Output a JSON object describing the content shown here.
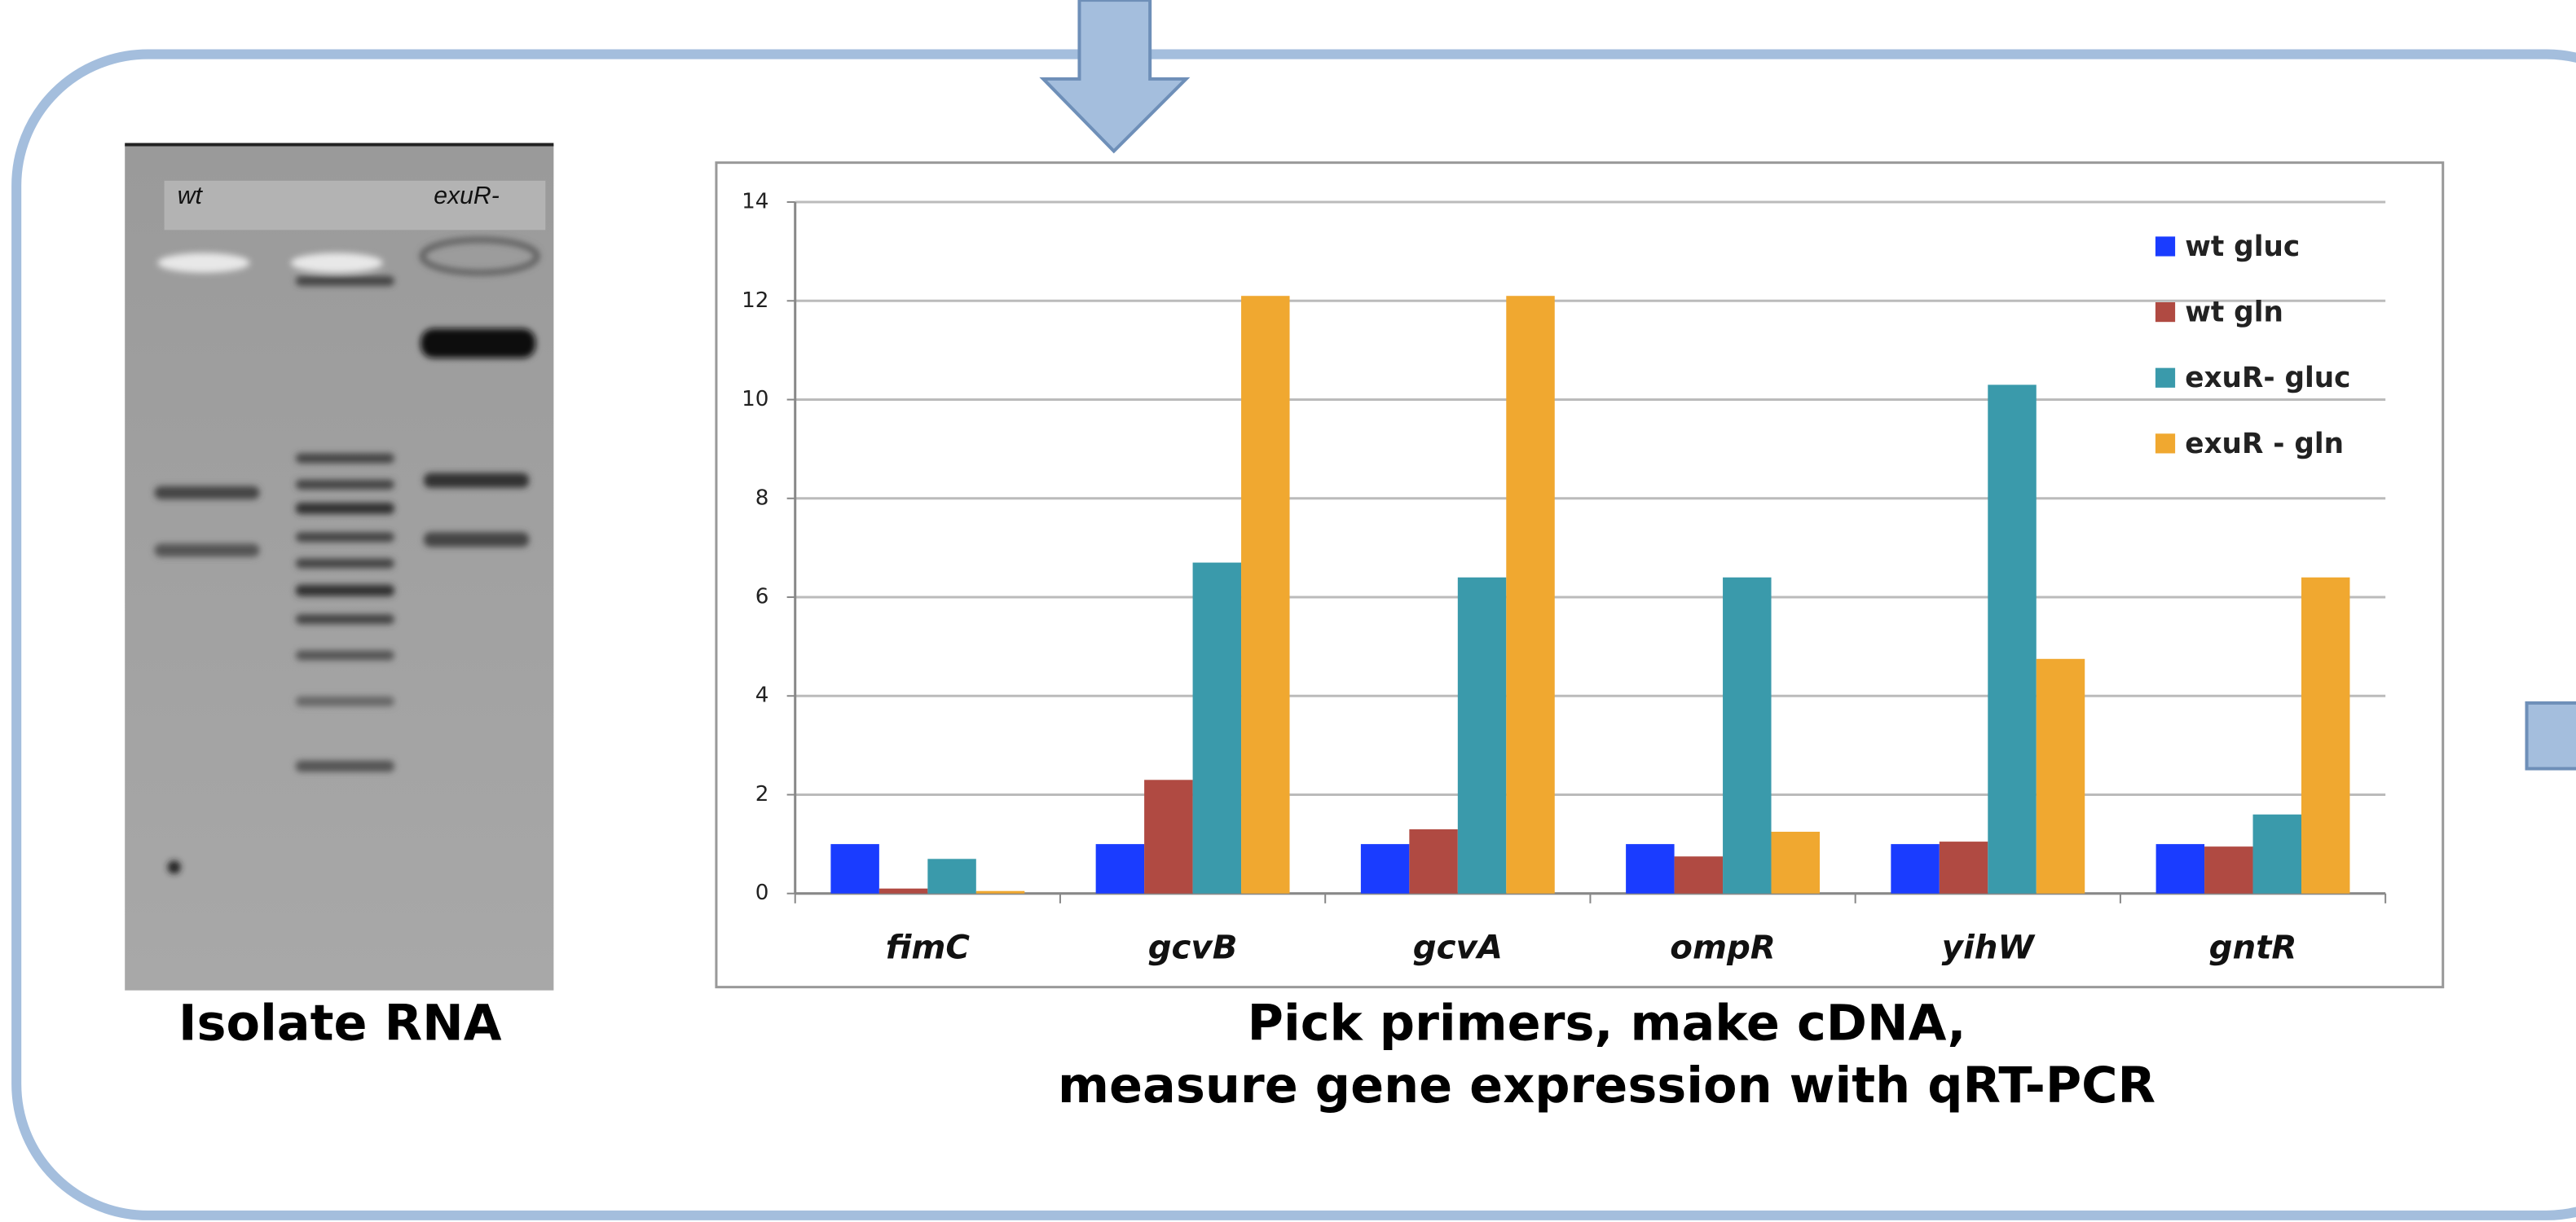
{
  "gel": {
    "lane_labels": [
      "wt",
      "exuR-"
    ],
    "caption": "Isolate RNA"
  },
  "chart_data": {
    "type": "bar",
    "categories": [
      "fimC",
      "gcvB",
      "gcvA",
      "ompR",
      "yihW",
      "gntR"
    ],
    "series": [
      {
        "name": "wt gluc",
        "color": "#1a3cff",
        "values": [
          1,
          1,
          1,
          1,
          1,
          1
        ]
      },
      {
        "name": "wt gln",
        "color": "#b04a42",
        "values": [
          0.1,
          2.3,
          1.3,
          0.75,
          1.05,
          0.95
        ]
      },
      {
        "name": "exuR- gluc",
        "color": "#3a9aab",
        "values": [
          0.7,
          6.7,
          6.4,
          6.4,
          10.3,
          1.6
        ]
      },
      {
        "name": "exuR - gln",
        "color": "#f0a830",
        "values": [
          0.05,
          12.1,
          12.1,
          1.25,
          4.75,
          6.4
        ]
      }
    ],
    "ylim": [
      0,
      14
    ],
    "yticks": [
      0,
      2,
      4,
      6,
      8,
      10,
      12,
      14
    ],
    "grid": true,
    "legend": "upper right"
  },
  "caption": [
    "Pick primers, make cDNA,",
    "measure gene expression with qRT-PCR"
  ]
}
